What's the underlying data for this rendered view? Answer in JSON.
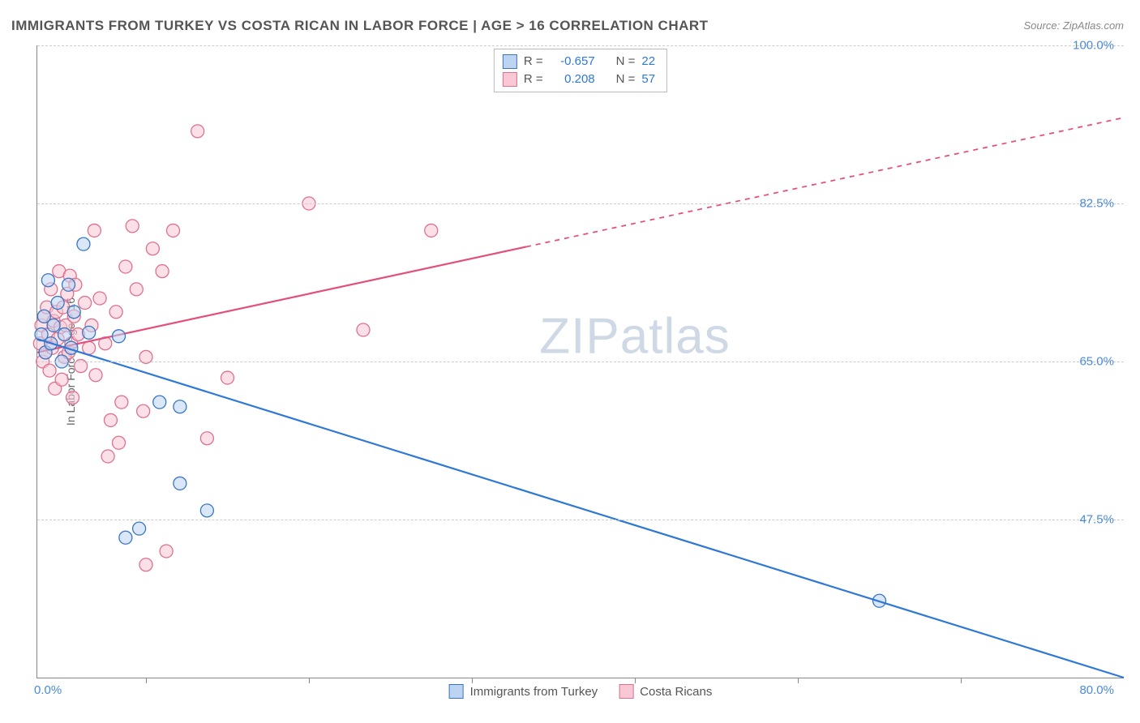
{
  "title": "IMMIGRANTS FROM TURKEY VS COSTA RICAN IN LABOR FORCE | AGE > 16 CORRELATION CHART",
  "source": "Source: ZipAtlas.com",
  "ylabel": "In Labor Force | Age > 16",
  "watermark": "ZIPatlas",
  "chart": {
    "type": "scatter-correlation",
    "xlim": [
      0,
      80
    ],
    "ylim": [
      30,
      100
    ],
    "xticks_pct": [
      10,
      25,
      40,
      55,
      70,
      85
    ],
    "x_axis_labels": {
      "min": "0.0%",
      "max": "80.0%"
    },
    "y_grid": [
      {
        "v": 100.0,
        "label": "100.0%"
      },
      {
        "v": 82.5,
        "label": "82.5%"
      },
      {
        "v": 65.0,
        "label": "65.0%"
      },
      {
        "v": 47.5,
        "label": "47.5%"
      }
    ],
    "plot_bg": "#ffffff",
    "grid_color": "#cccccc",
    "axis_color": "#888888",
    "tick_label_color": "#4a8ad8",
    "marker_radius": 8,
    "marker_stroke_width": 1.3,
    "series": {
      "turkey": {
        "label": "Immigrants from Turkey",
        "R": "-0.657",
        "N": "22",
        "fill": "#bcd4f2",
        "stroke": "#3a76c4",
        "line_color": "#2f78d6",
        "line_width": 2.2,
        "trend": {
          "x0": 0,
          "y0": 67.5,
          "x1": 80,
          "y1": 30,
          "solid_to_x": 80
        },
        "points": [
          [
            0.3,
            68.0
          ],
          [
            0.5,
            70.0
          ],
          [
            0.6,
            66.0
          ],
          [
            0.8,
            74.0
          ],
          [
            1.0,
            67.0
          ],
          [
            1.2,
            69.0
          ],
          [
            1.5,
            71.5
          ],
          [
            1.8,
            65.0
          ],
          [
            2.0,
            68.0
          ],
          [
            2.3,
            73.5
          ],
          [
            2.5,
            66.5
          ],
          [
            2.7,
            70.5
          ],
          [
            3.4,
            78.0
          ],
          [
            3.8,
            68.2
          ],
          [
            6.0,
            67.8
          ],
          [
            9.0,
            60.5
          ],
          [
            10.5,
            60.0
          ],
          [
            7.5,
            46.5
          ],
          [
            12.5,
            48.5
          ],
          [
            10.5,
            51.5
          ],
          [
            6.5,
            45.5
          ],
          [
            62.0,
            38.5
          ]
        ]
      },
      "costarica": {
        "label": "Costa Ricans",
        "R": "0.208",
        "N": "57",
        "fill": "#f8c8d4",
        "stroke": "#e0708f",
        "line_color": "#e34f7a",
        "line_width": 2.2,
        "trend": {
          "x0": 0,
          "y0": 66.0,
          "x1": 80,
          "y1": 92.0,
          "solid_to_x": 36
        },
        "points": [
          [
            0.2,
            67.0
          ],
          [
            0.3,
            69.0
          ],
          [
            0.4,
            65.0
          ],
          [
            0.5,
            70.0
          ],
          [
            0.6,
            66.0
          ],
          [
            0.7,
            71.0
          ],
          [
            0.8,
            68.0
          ],
          [
            0.9,
            64.0
          ],
          [
            1.0,
            73.0
          ],
          [
            1.1,
            66.5
          ],
          [
            1.2,
            69.5
          ],
          [
            1.3,
            62.0
          ],
          [
            1.4,
            70.5
          ],
          [
            1.5,
            67.5
          ],
          [
            1.6,
            75.0
          ],
          [
            1.7,
            68.8
          ],
          [
            1.8,
            63.0
          ],
          [
            1.9,
            71.0
          ],
          [
            2.0,
            65.5
          ],
          [
            2.1,
            69.0
          ],
          [
            2.2,
            72.5
          ],
          [
            2.3,
            66.0
          ],
          [
            2.4,
            74.5
          ],
          [
            2.5,
            67.0
          ],
          [
            2.6,
            61.0
          ],
          [
            2.7,
            70.0
          ],
          [
            2.8,
            73.5
          ],
          [
            3.0,
            68.0
          ],
          [
            3.2,
            64.5
          ],
          [
            3.5,
            71.5
          ],
          [
            3.8,
            66.5
          ],
          [
            4.0,
            69.0
          ],
          [
            4.3,
            63.5
          ],
          [
            4.6,
            72.0
          ],
          [
            5.0,
            67.0
          ],
          [
            5.2,
            54.5
          ],
          [
            5.4,
            58.5
          ],
          [
            5.8,
            70.5
          ],
          [
            6.0,
            56.0
          ],
          [
            6.2,
            60.5
          ],
          [
            6.5,
            75.5
          ],
          [
            4.2,
            79.5
          ],
          [
            7.0,
            80.0
          ],
          [
            7.3,
            73.0
          ],
          [
            7.8,
            59.5
          ],
          [
            8.0,
            65.5
          ],
          [
            8.5,
            77.5
          ],
          [
            9.2,
            75.0
          ],
          [
            10.0,
            79.5
          ],
          [
            9.5,
            44.0
          ],
          [
            8.0,
            42.5
          ],
          [
            11.8,
            90.5
          ],
          [
            12.5,
            56.5
          ],
          [
            14.0,
            63.2
          ],
          [
            20.0,
            82.5
          ],
          [
            24.0,
            68.5
          ],
          [
            29.0,
            79.5
          ]
        ]
      }
    }
  },
  "legend_top": {
    "rows": [
      {
        "swatch": "turkey",
        "r_label": "R =",
        "r_val": "-0.657",
        "n_label": "N =",
        "n_val": "22"
      },
      {
        "swatch": "costarica",
        "r_label": "R =",
        "r_val": "0.208",
        "n_label": "N =",
        "n_val": "57"
      }
    ]
  },
  "legend_bottom": [
    {
      "swatch": "turkey",
      "label": "Immigrants from Turkey"
    },
    {
      "swatch": "costarica",
      "label": "Costa Ricans"
    }
  ]
}
